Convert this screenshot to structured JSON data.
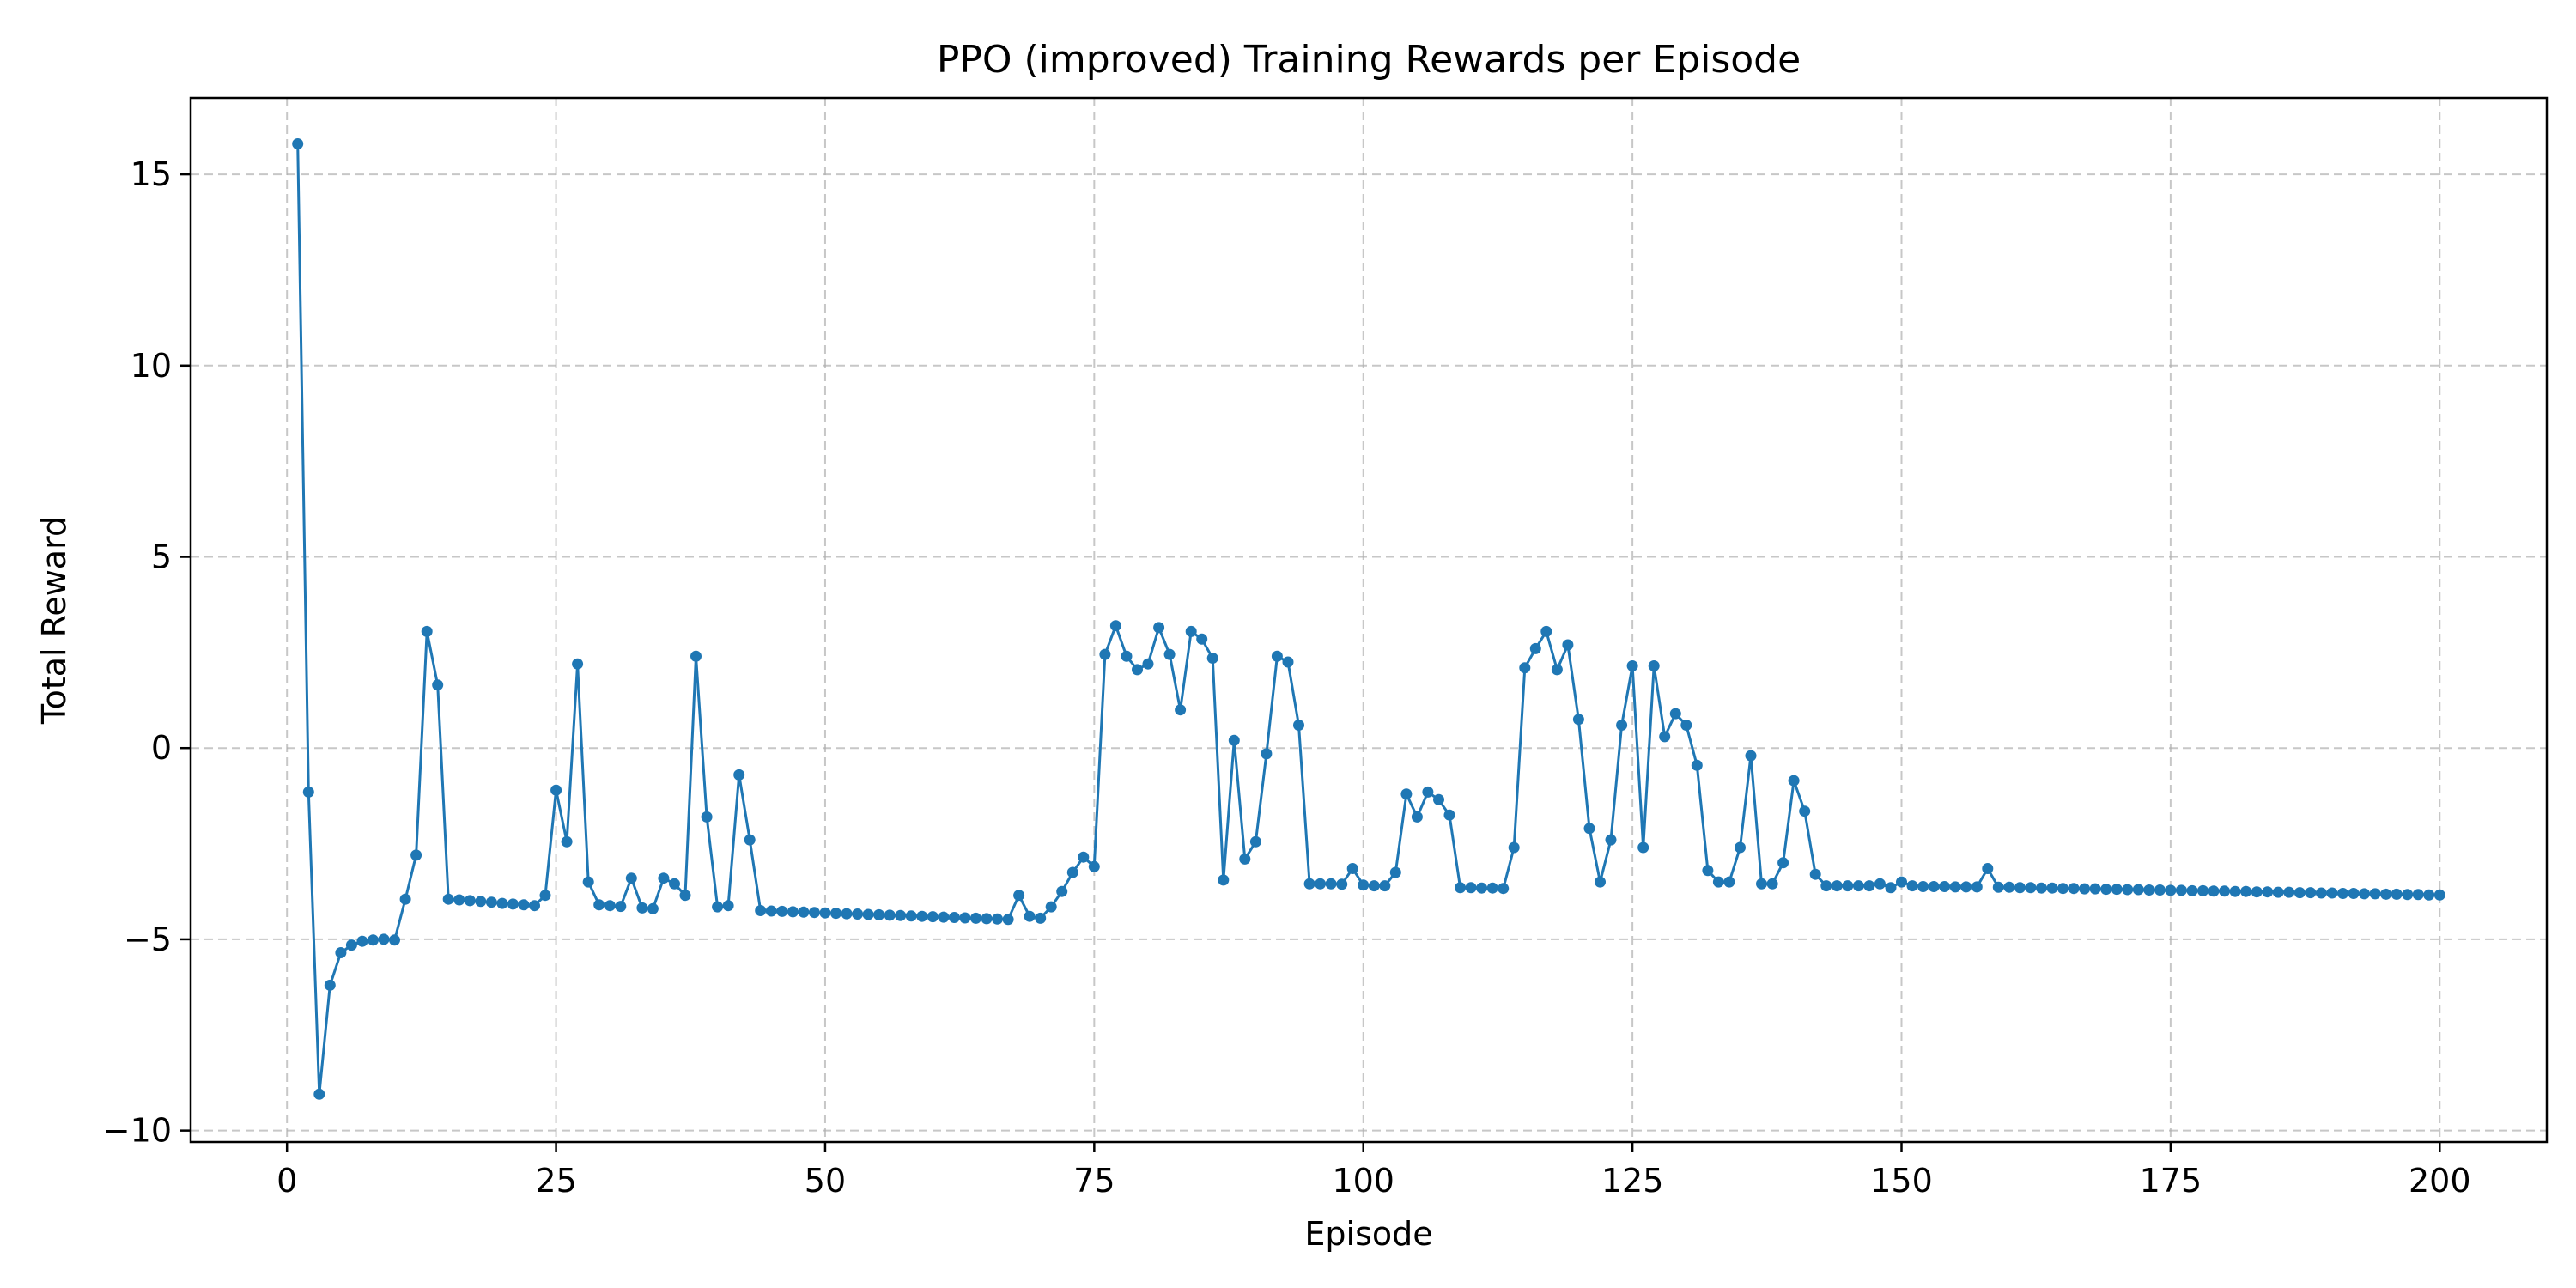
{
  "chart_data": {
    "type": "line",
    "title": "PPO (improved) Training Rewards per Episode",
    "xlabel": "Episode",
    "ylabel": "Total Reward",
    "xlim": [
      -8.95,
      209.95
    ],
    "ylim": [
      -10.3,
      17.0
    ],
    "xticks": [
      0,
      25,
      50,
      75,
      100,
      125,
      150,
      175,
      200
    ],
    "yticks": [
      -10,
      -5,
      0,
      5,
      10,
      15
    ],
    "grid": true,
    "marker": "circle",
    "line_color": "#1f77b4",
    "series": [
      {
        "x_start": 1,
        "x_step": 1,
        "values": [
          15.8,
          -1.15,
          -9.05,
          -6.2,
          -5.35,
          -5.15,
          -5.05,
          -5.02,
          -5.0,
          -5.02,
          -3.95,
          -2.8,
          3.05,
          1.65,
          -3.95,
          -3.97,
          -3.99,
          -4.01,
          -4.03,
          -4.06,
          -4.08,
          -4.1,
          -4.12,
          -3.85,
          -1.1,
          -2.45,
          2.2,
          -3.5,
          -4.1,
          -4.12,
          -4.14,
          -3.4,
          -4.18,
          -4.2,
          -3.4,
          -3.55,
          -3.85,
          2.4,
          -1.8,
          -4.15,
          -4.12,
          -0.7,
          -2.4,
          -4.25,
          -4.26,
          -4.27,
          -4.28,
          -4.29,
          -4.3,
          -4.31,
          -4.32,
          -4.33,
          -4.34,
          -4.35,
          -4.36,
          -4.37,
          -4.38,
          -4.39,
          -4.4,
          -4.41,
          -4.42,
          -4.43,
          -4.44,
          -4.45,
          -4.46,
          -4.47,
          -4.48,
          -3.85,
          -4.4,
          -4.45,
          -4.15,
          -3.75,
          -3.25,
          -2.85,
          -3.1,
          2.45,
          3.2,
          2.4,
          2.05,
          2.2,
          3.15,
          2.45,
          1.0,
          3.05,
          2.85,
          2.35,
          -3.45,
          0.2,
          -2.9,
          -2.45,
          -0.15,
          2.4,
          2.25,
          0.6,
          -3.55,
          -3.55,
          -3.55,
          -3.56,
          -3.15,
          -3.58,
          -3.6,
          -3.6,
          -3.25,
          -1.2,
          -1.8,
          -1.15,
          -1.35,
          -1.75,
          -3.65,
          -3.65,
          -3.66,
          -3.66,
          -3.67,
          -2.6,
          2.1,
          2.6,
          3.05,
          2.05,
          2.7,
          0.75,
          -2.1,
          -3.5,
          -2.4,
          0.6,
          2.15,
          -2.6,
          2.15,
          0.3,
          0.9,
          0.6,
          -0.45,
          -3.2,
          -3.5,
          -3.5,
          -2.6,
          -0.2,
          -3.55,
          -3.55,
          -3.0,
          -0.85,
          -1.65,
          -3.3,
          -3.6,
          -3.6,
          -3.6,
          -3.6,
          -3.6,
          -3.55,
          -3.65,
          -3.5,
          -3.6,
          -3.62,
          -3.62,
          -3.62,
          -3.63,
          -3.63,
          -3.63,
          -3.15,
          -3.64,
          -3.64,
          -3.65,
          -3.65,
          -3.66,
          -3.66,
          -3.67,
          -3.67,
          -3.68,
          -3.68,
          -3.69,
          -3.69,
          -3.7,
          -3.7,
          -3.71,
          -3.71,
          -3.72,
          -3.72,
          -3.73,
          -3.73,
          -3.74,
          -3.74,
          -3.75,
          -3.75,
          -3.76,
          -3.76,
          -3.77,
          -3.77,
          -3.78,
          -3.78,
          -3.79,
          -3.79,
          -3.8,
          -3.8,
          -3.81,
          -3.81,
          -3.82,
          -3.82,
          -3.83,
          -3.83,
          -3.84,
          -3.84
        ]
      }
    ]
  }
}
